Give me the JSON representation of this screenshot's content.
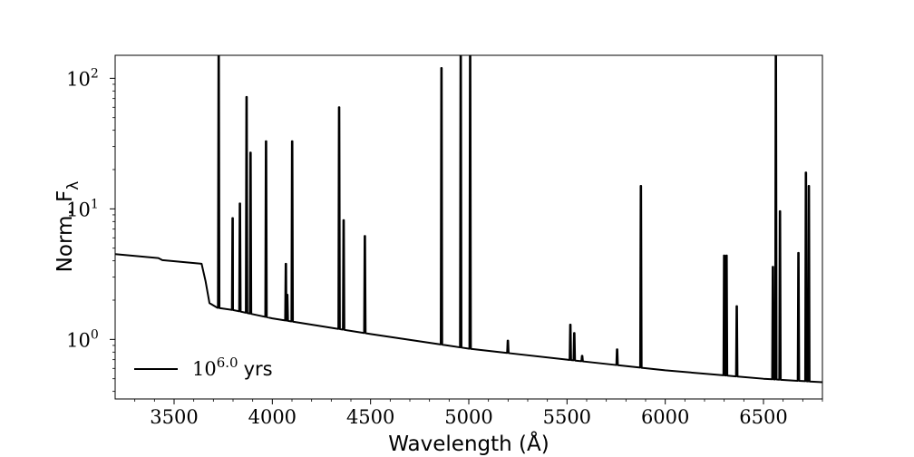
{
  "chart_data": {
    "type": "line",
    "xlabel": "Wavelength (Å)",
    "ylabel": "Norm. F",
    "ylabel_sub": "λ",
    "xlim": [
      3200,
      6800
    ],
    "ylim": [
      0.35,
      150
    ],
    "yscale": "log",
    "grid": false,
    "legend_position": "bottom-left",
    "line_color": "#000000",
    "x_ticks": [
      3500,
      4000,
      4500,
      5000,
      5500,
      6000,
      6500
    ],
    "x_tick_labels": [
      "3500",
      "4000",
      "4500",
      "5000",
      "5500",
      "6000",
      "6500"
    ],
    "y_ticks": [
      1,
      10,
      100
    ],
    "y_tick_base": [
      "10",
      "10",
      "10"
    ],
    "y_tick_exp": [
      "0",
      "1",
      "2"
    ],
    "series": [
      {
        "name": "yrs",
        "name_base": "10",
        "name_exp": "6.0",
        "continuum": [
          [
            3200,
            4.5
          ],
          [
            3420,
            4.2
          ],
          [
            3440,
            4.05
          ],
          [
            3640,
            3.8
          ],
          [
            3660,
            2.8
          ],
          [
            3680,
            1.9
          ],
          [
            3720,
            1.75
          ],
          [
            3800,
            1.68
          ],
          [
            4000,
            1.45
          ],
          [
            4500,
            1.1
          ],
          [
            5000,
            0.85
          ],
          [
            5500,
            0.7
          ],
          [
            6000,
            0.58
          ],
          [
            6500,
            0.5
          ],
          [
            6800,
            0.47
          ]
        ],
        "lines": [
          [
            3727,
            150
          ],
          [
            3798,
            8.5
          ],
          [
            3835,
            11
          ],
          [
            3869,
            72
          ],
          [
            3889,
            27
          ],
          [
            3968,
            33
          ],
          [
            4069,
            3.8
          ],
          [
            4076,
            2.2
          ],
          [
            4101,
            33
          ],
          [
            4340,
            60
          ],
          [
            4363,
            8.2
          ],
          [
            4471,
            6.2
          ],
          [
            4861,
            120
          ],
          [
            4959,
            150
          ],
          [
            5007,
            150
          ],
          [
            5199,
            0.98
          ],
          [
            5517,
            1.3
          ],
          [
            5537,
            1.12
          ],
          [
            5577,
            0.75
          ],
          [
            5755,
            0.84
          ],
          [
            5876,
            15
          ],
          [
            6300,
            4.4
          ],
          [
            6312,
            4.4
          ],
          [
            6364,
            1.8
          ],
          [
            6548,
            3.6
          ],
          [
            6563,
            150
          ],
          [
            6584,
            9.6
          ],
          [
            6678,
            4.6
          ],
          [
            6716,
            19
          ],
          [
            6731,
            15
          ]
        ]
      }
    ]
  }
}
